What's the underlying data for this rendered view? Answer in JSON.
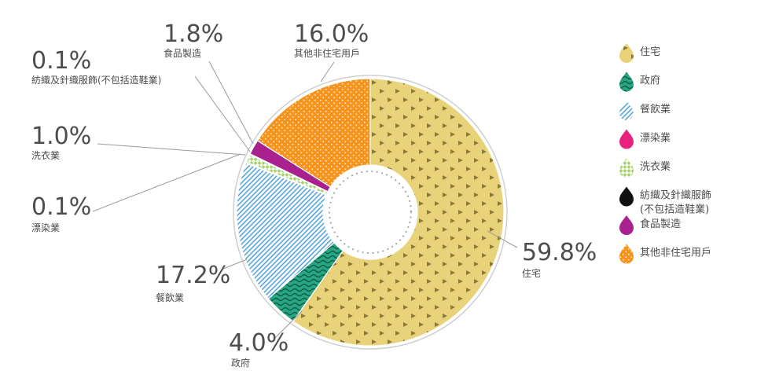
{
  "chart_data": {
    "type": "pie",
    "variant": "donut",
    "title": "",
    "start_angle_deg": 0,
    "direction": "clockwise",
    "slices": [
      {
        "key": "residential",
        "label": "住宅",
        "value": 59.8,
        "value_label": "59.8%",
        "color": "#e8d37b",
        "pattern": "triangles"
      },
      {
        "key": "government",
        "label": "政府",
        "value": 4.0,
        "value_label": "4.0%",
        "color": "#27a683",
        "pattern": "waves"
      },
      {
        "key": "restaurants",
        "label": "餐飲業",
        "value": 17.2,
        "value_label": "17.2%",
        "color": "#8ec9ef",
        "pattern": "stripes"
      },
      {
        "key": "bleaching_dyeing",
        "label": "漂染業",
        "value": 0.1,
        "value_label": "0.1%",
        "color": "#e8217d",
        "pattern": "solid"
      },
      {
        "key": "laundry",
        "label": "洗衣業",
        "value": 1.0,
        "value_label": "1.0%",
        "color": "#a7d16a",
        "pattern": "checker"
      },
      {
        "key": "textile_garment",
        "label": "紡織及針織服飾(不包括造鞋業)",
        "value": 0.1,
        "value_label": "0.1%",
        "color": "#111111",
        "pattern": "solid"
      },
      {
        "key": "food_manufacturing",
        "label": "食品製造",
        "value": 1.8,
        "value_label": "1.8%",
        "color": "#a8218f",
        "pattern": "solid"
      },
      {
        "key": "other_non_domestic",
        "label": "其他非住宅用戶",
        "value": 16.0,
        "value_label": "16.0%",
        "color": "#f7941d",
        "pattern": "dots"
      }
    ],
    "legend": {
      "placement": "right",
      "items": [
        {
          "key": "residential",
          "lines": [
            "住宅"
          ]
        },
        {
          "key": "government",
          "lines": [
            "政府"
          ]
        },
        {
          "key": "restaurants",
          "lines": [
            "餐飲業"
          ]
        },
        {
          "key": "bleaching_dyeing",
          "lines": [
            "漂染業"
          ]
        },
        {
          "key": "laundry",
          "lines": [
            "洗衣業"
          ]
        },
        {
          "key": "textile_garment",
          "lines": [
            "紡織及針織服飾",
            "(不包括造鞋業)"
          ]
        },
        {
          "key": "food_manufacturing",
          "lines": [
            "食品製造"
          ]
        },
        {
          "key": "other_non_domestic",
          "lines": [
            "其他非住宅用戶"
          ]
        }
      ]
    }
  },
  "colors": {
    "text": "#4d4d4d",
    "leader": "#9a9a9a",
    "ring_outline": "#cfcfcf",
    "inner_dots": "#aaaaaa"
  }
}
